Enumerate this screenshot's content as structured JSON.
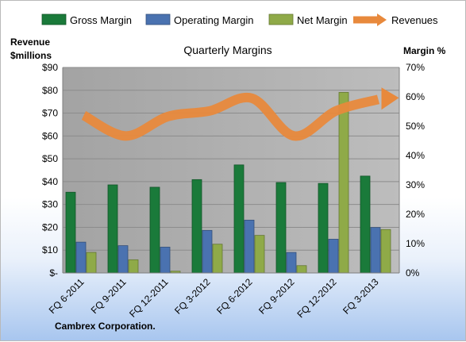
{
  "chart_data": {
    "type": "bar",
    "title": "Quarterly Margins",
    "footer": "Cambrex Corporation.",
    "left_axis": {
      "title_line1": "Revenue",
      "title_line2": "$millions",
      "range": [
        0,
        90
      ],
      "ticks": [
        "$-",
        "$10",
        "$20",
        "$30",
        "$40",
        "$50",
        "$60",
        "$70",
        "$80",
        "$90"
      ]
    },
    "right_axis": {
      "title": "Margin %",
      "range": [
        0,
        70
      ],
      "ticks": [
        "0%",
        "10%",
        "20%",
        "30%",
        "40%",
        "50%",
        "60%",
        "70%"
      ]
    },
    "categories": [
      "FQ 6-2011",
      "FQ 9-2011",
      "FQ 12-2011",
      "FQ 3-2012",
      "FQ 6-2012",
      "FQ 9-2012",
      "FQ 12-2012",
      "FQ 3-2013"
    ],
    "series": [
      {
        "name": "Gross Margin",
        "axis": "right",
        "color": "#1a7a3a",
        "values": [
          27.5,
          30,
          29.2,
          31.8,
          36.8,
          30.8,
          30.5,
          33
        ]
      },
      {
        "name": "Operating Margin",
        "axis": "right",
        "color": "#4a72b0",
        "values": [
          10.5,
          9.3,
          8.8,
          14.5,
          18,
          7,
          11.5,
          15.5
        ]
      },
      {
        "name": "Net Margin",
        "axis": "right",
        "color": "#8faa48",
        "values": [
          7,
          4.5,
          0.6,
          9.8,
          12.8,
          2.5,
          61.5,
          14.8
        ]
      },
      {
        "name": "Revenues",
        "axis": "left",
        "color": "#e8893c",
        "type": "line",
        "values": [
          69,
          60,
          68.5,
          71,
          76.5,
          60,
          71,
          76
        ]
      }
    ],
    "grid": true,
    "legend_position": "top"
  }
}
